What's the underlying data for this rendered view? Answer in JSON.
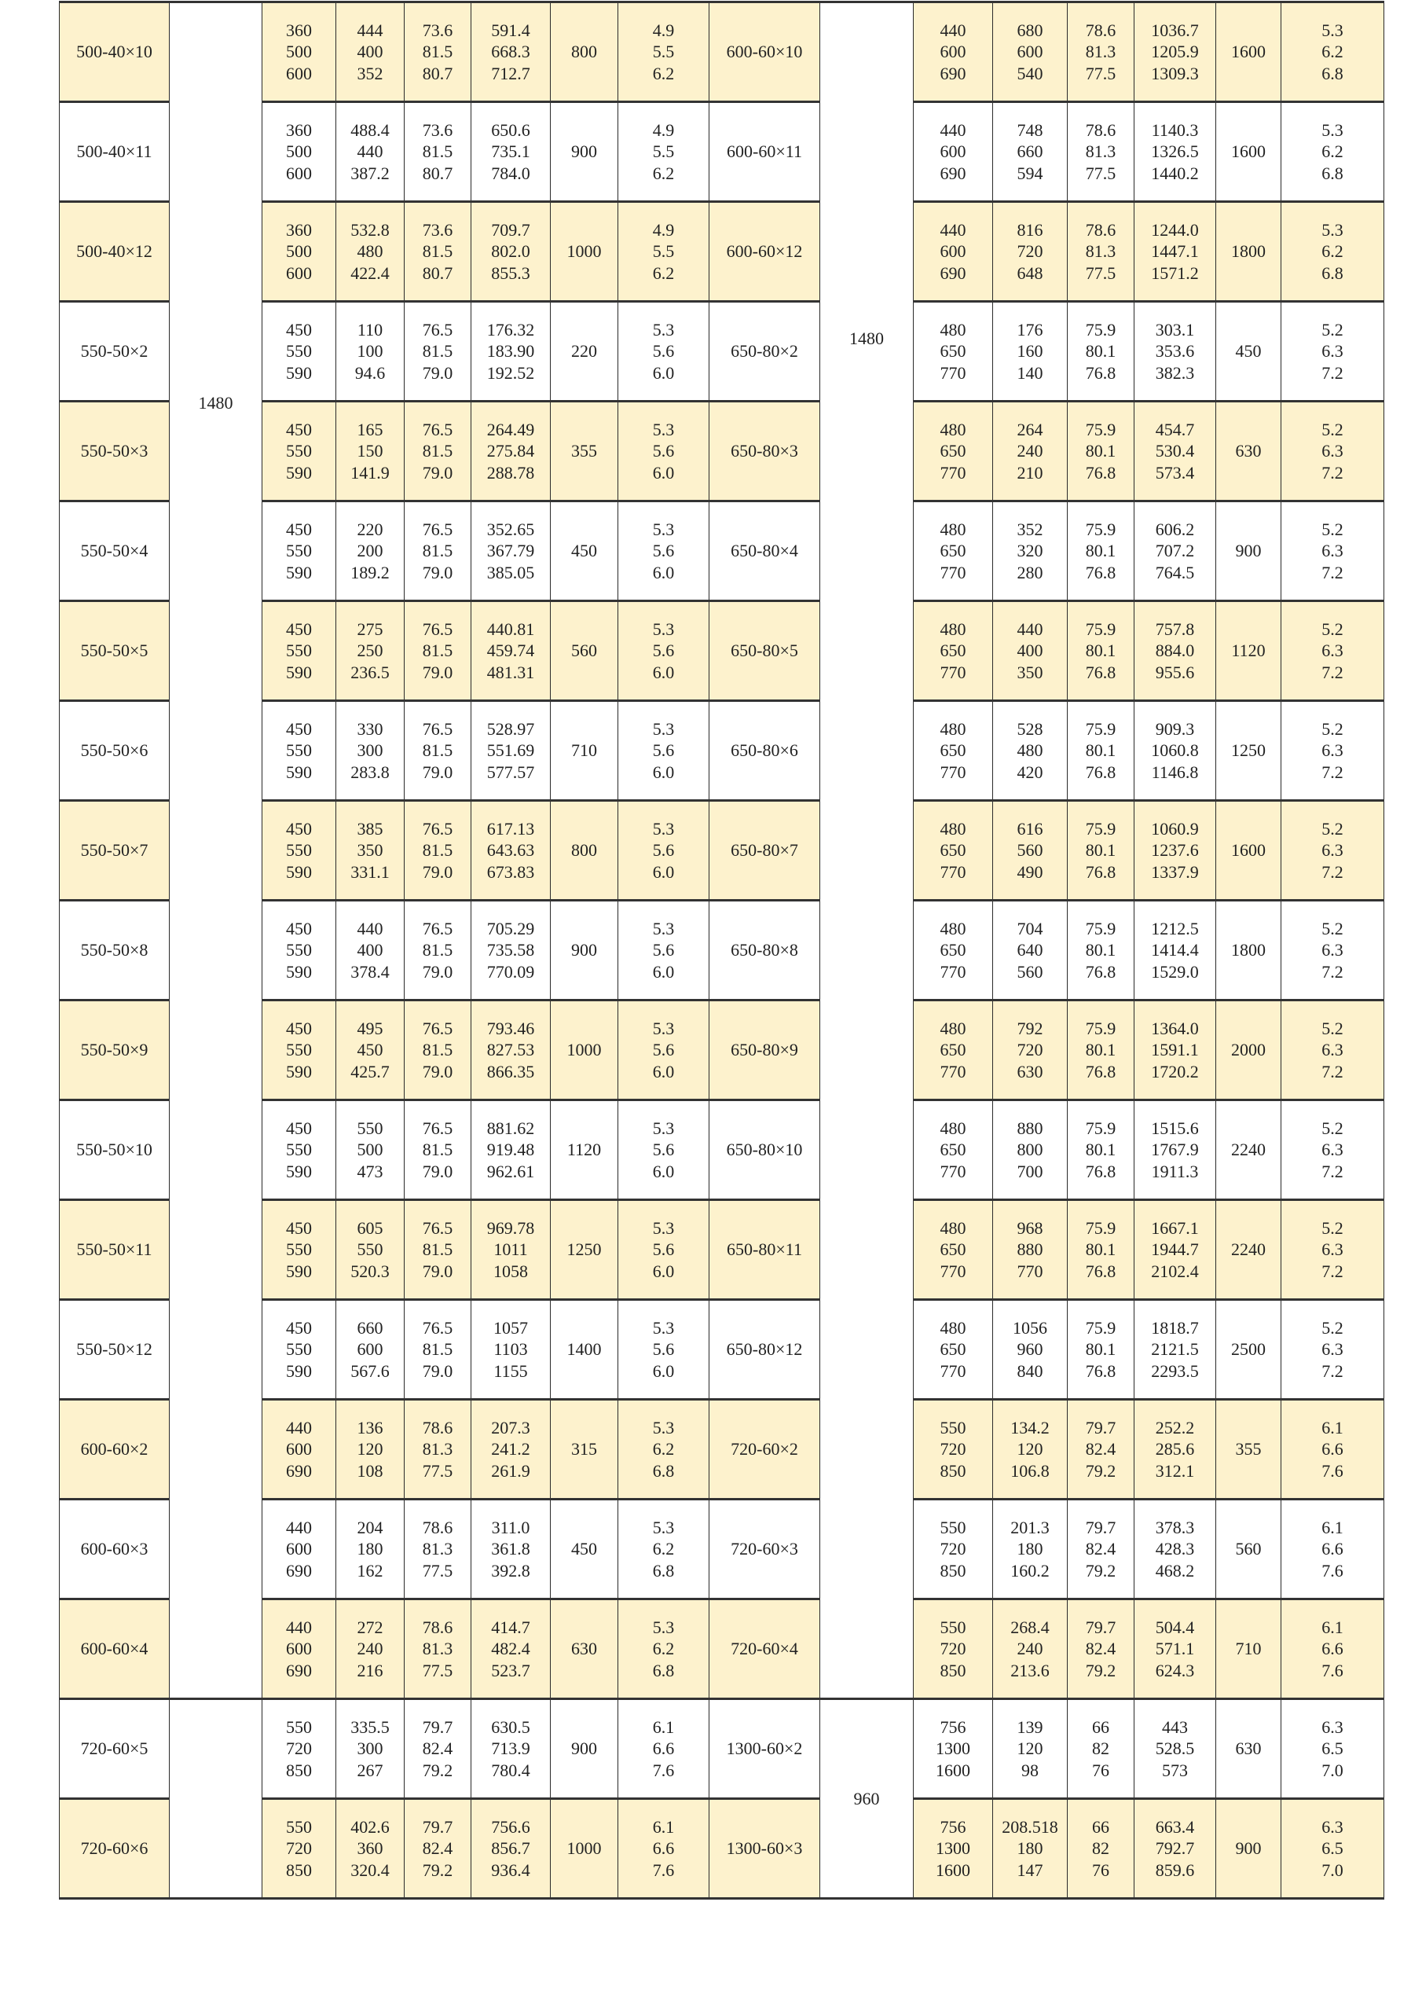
{
  "colors": {
    "alt_row": "#fdf2cd",
    "row": "#ffffff",
    "border": "#2a2a2a"
  },
  "speed_groups": {
    "left": [
      {
        "value": "1480",
        "rows": 17
      },
      {
        "value": "",
        "rows": 2
      }
    ],
    "right": [
      {
        "value": "1480",
        "rows": 17
      },
      {
        "value": "960",
        "rows": 2
      }
    ]
  },
  "rows": [
    {
      "l": {
        "model": "500-40×10",
        "flow": [
          "360",
          "500",
          "600"
        ],
        "head": [
          "444",
          "400",
          "352"
        ],
        "eff": [
          "73.6",
          "81.5",
          "80.7"
        ],
        "shaft": [
          "591.4",
          "668.3",
          "712.7"
        ],
        "motor": "800",
        "npsh": [
          "4.9",
          "5.5",
          "6.2"
        ]
      },
      "r": {
        "model": "600-60×10",
        "flow": [
          "440",
          "600",
          "690"
        ],
        "head": [
          "680",
          "600",
          "540"
        ],
        "eff": [
          "78.6",
          "81.3",
          "77.5"
        ],
        "shaft": [
          "1036.7",
          "1205.9",
          "1309.3"
        ],
        "motor": "1600",
        "npsh": [
          "5.3",
          "6.2",
          "6.8"
        ]
      }
    },
    {
      "l": {
        "model": "500-40×11",
        "flow": [
          "360",
          "500",
          "600"
        ],
        "head": [
          "488.4",
          "440",
          "387.2"
        ],
        "eff": [
          "73.6",
          "81.5",
          "80.7"
        ],
        "shaft": [
          "650.6",
          "735.1",
          "784.0"
        ],
        "motor": "900",
        "npsh": [
          "4.9",
          "5.5",
          "6.2"
        ]
      },
      "r": {
        "model": "600-60×11",
        "flow": [
          "440",
          "600",
          "690"
        ],
        "head": [
          "748",
          "660",
          "594"
        ],
        "eff": [
          "78.6",
          "81.3",
          "77.5"
        ],
        "shaft": [
          "1140.3",
          "1326.5",
          "1440.2"
        ],
        "motor": "1600",
        "npsh": [
          "5.3",
          "6.2",
          "6.8"
        ]
      }
    },
    {
      "l": {
        "model": "500-40×12",
        "flow": [
          "360",
          "500",
          "600"
        ],
        "head": [
          "532.8",
          "480",
          "422.4"
        ],
        "eff": [
          "73.6",
          "81.5",
          "80.7"
        ],
        "shaft": [
          "709.7",
          "802.0",
          "855.3"
        ],
        "motor": "1000",
        "npsh": [
          "4.9",
          "5.5",
          "6.2"
        ]
      },
      "r": {
        "model": "600-60×12",
        "flow": [
          "440",
          "600",
          "690"
        ],
        "head": [
          "816",
          "720",
          "648"
        ],
        "eff": [
          "78.6",
          "81.3",
          "77.5"
        ],
        "shaft": [
          "1244.0",
          "1447.1",
          "1571.2"
        ],
        "motor": "1800",
        "npsh": [
          "5.3",
          "6.2",
          "6.8"
        ]
      }
    },
    {
      "l": {
        "model": "550-50×2",
        "flow": [
          "450",
          "550",
          "590"
        ],
        "head": [
          "110",
          "100",
          "94.6"
        ],
        "eff": [
          "76.5",
          "81.5",
          "79.0"
        ],
        "shaft": [
          "176.32",
          "183.90",
          "192.52"
        ],
        "motor": "220",
        "npsh": [
          "5.3",
          "5.6",
          "6.0"
        ]
      },
      "r": {
        "model": "650-80×2",
        "flow": [
          "480",
          "650",
          "770"
        ],
        "head": [
          "176",
          "160",
          "140"
        ],
        "eff": [
          "75.9",
          "80.1",
          "76.8"
        ],
        "shaft": [
          "303.1",
          "353.6",
          "382.3"
        ],
        "motor": "450",
        "npsh": [
          "5.2",
          "6.3",
          "7.2"
        ]
      }
    },
    {
      "l": {
        "model": "550-50×3",
        "flow": [
          "450",
          "550",
          "590"
        ],
        "head": [
          "165",
          "150",
          "141.9"
        ],
        "eff": [
          "76.5",
          "81.5",
          "79.0"
        ],
        "shaft": [
          "264.49",
          "275.84",
          "288.78"
        ],
        "motor": "355",
        "npsh": [
          "5.3",
          "5.6",
          "6.0"
        ]
      },
      "r": {
        "model": "650-80×3",
        "flow": [
          "480",
          "650",
          "770"
        ],
        "head": [
          "264",
          "240",
          "210"
        ],
        "eff": [
          "75.9",
          "80.1",
          "76.8"
        ],
        "shaft": [
          "454.7",
          "530.4",
          "573.4"
        ],
        "motor": "630",
        "npsh": [
          "5.2",
          "6.3",
          "7.2"
        ]
      }
    },
    {
      "l": {
        "model": "550-50×4",
        "flow": [
          "450",
          "550",
          "590"
        ],
        "head": [
          "220",
          "200",
          "189.2"
        ],
        "eff": [
          "76.5",
          "81.5",
          "79.0"
        ],
        "shaft": [
          "352.65",
          "367.79",
          "385.05"
        ],
        "motor": "450",
        "npsh": [
          "5.3",
          "5.6",
          "6.0"
        ]
      },
      "r": {
        "model": "650-80×4",
        "flow": [
          "480",
          "650",
          "770"
        ],
        "head": [
          "352",
          "320",
          "280"
        ],
        "eff": [
          "75.9",
          "80.1",
          "76.8"
        ],
        "shaft": [
          "606.2",
          "707.2",
          "764.5"
        ],
        "motor": "900",
        "npsh": [
          "5.2",
          "6.3",
          "7.2"
        ]
      }
    },
    {
      "l": {
        "model": "550-50×5",
        "flow": [
          "450",
          "550",
          "590"
        ],
        "head": [
          "275",
          "250",
          "236.5"
        ],
        "eff": [
          "76.5",
          "81.5",
          "79.0"
        ],
        "shaft": [
          "440.81",
          "459.74",
          "481.31"
        ],
        "motor": "560",
        "npsh": [
          "5.3",
          "5.6",
          "6.0"
        ]
      },
      "r": {
        "model": "650-80×5",
        "flow": [
          "480",
          "650",
          "770"
        ],
        "head": [
          "440",
          "400",
          "350"
        ],
        "eff": [
          "75.9",
          "80.1",
          "76.8"
        ],
        "shaft": [
          "757.8",
          "884.0",
          "955.6"
        ],
        "motor": "1120",
        "npsh": [
          "5.2",
          "6.3",
          "7.2"
        ]
      }
    },
    {
      "l": {
        "model": "550-50×6",
        "flow": [
          "450",
          "550",
          "590"
        ],
        "head": [
          "330",
          "300",
          "283.8"
        ],
        "eff": [
          "76.5",
          "81.5",
          "79.0"
        ],
        "shaft": [
          "528.97",
          "551.69",
          "577.57"
        ],
        "motor": "710",
        "npsh": [
          "5.3",
          "5.6",
          "6.0"
        ]
      },
      "r": {
        "model": "650-80×6",
        "flow": [
          "480",
          "650",
          "770"
        ],
        "head": [
          "528",
          "480",
          "420"
        ],
        "eff": [
          "75.9",
          "80.1",
          "76.8"
        ],
        "shaft": [
          "909.3",
          "1060.8",
          "1146.8"
        ],
        "motor": "1250",
        "npsh": [
          "5.2",
          "6.3",
          "7.2"
        ]
      }
    },
    {
      "l": {
        "model": "550-50×7",
        "flow": [
          "450",
          "550",
          "590"
        ],
        "head": [
          "385",
          "350",
          "331.1"
        ],
        "eff": [
          "76.5",
          "81.5",
          "79.0"
        ],
        "shaft": [
          "617.13",
          "643.63",
          "673.83"
        ],
        "motor": "800",
        "npsh": [
          "5.3",
          "5.6",
          "6.0"
        ]
      },
      "r": {
        "model": "650-80×7",
        "flow": [
          "480",
          "650",
          "770"
        ],
        "head": [
          "616",
          "560",
          "490"
        ],
        "eff": [
          "75.9",
          "80.1",
          "76.8"
        ],
        "shaft": [
          "1060.9",
          "1237.6",
          "1337.9"
        ],
        "motor": "1600",
        "npsh": [
          "5.2",
          "6.3",
          "7.2"
        ]
      }
    },
    {
      "l": {
        "model": "550-50×8",
        "flow": [
          "450",
          "550",
          "590"
        ],
        "head": [
          "440",
          "400",
          "378.4"
        ],
        "eff": [
          "76.5",
          "81.5",
          "79.0"
        ],
        "shaft": [
          "705.29",
          "735.58",
          "770.09"
        ],
        "motor": "900",
        "npsh": [
          "5.3",
          "5.6",
          "6.0"
        ]
      },
      "r": {
        "model": "650-80×8",
        "flow": [
          "480",
          "650",
          "770"
        ],
        "head": [
          "704",
          "640",
          "560"
        ],
        "eff": [
          "75.9",
          "80.1",
          "76.8"
        ],
        "shaft": [
          "1212.5",
          "1414.4",
          "1529.0"
        ],
        "motor": "1800",
        "npsh": [
          "5.2",
          "6.3",
          "7.2"
        ]
      }
    },
    {
      "l": {
        "model": "550-50×9",
        "flow": [
          "450",
          "550",
          "590"
        ],
        "head": [
          "495",
          "450",
          "425.7"
        ],
        "eff": [
          "76.5",
          "81.5",
          "79.0"
        ],
        "shaft": [
          "793.46",
          "827.53",
          "866.35"
        ],
        "motor": "1000",
        "npsh": [
          "5.3",
          "5.6",
          "6.0"
        ]
      },
      "r": {
        "model": "650-80×9",
        "flow": [
          "480",
          "650",
          "770"
        ],
        "head": [
          "792",
          "720",
          "630"
        ],
        "eff": [
          "75.9",
          "80.1",
          "76.8"
        ],
        "shaft": [
          "1364.0",
          "1591.1",
          "1720.2"
        ],
        "motor": "2000",
        "npsh": [
          "5.2",
          "6.3",
          "7.2"
        ]
      }
    },
    {
      "l": {
        "model": "550-50×10",
        "flow": [
          "450",
          "550",
          "590"
        ],
        "head": [
          "550",
          "500",
          "473"
        ],
        "eff": [
          "76.5",
          "81.5",
          "79.0"
        ],
        "shaft": [
          "881.62",
          "919.48",
          "962.61"
        ],
        "motor": "1120",
        "npsh": [
          "5.3",
          "5.6",
          "6.0"
        ]
      },
      "r": {
        "model": "650-80×10",
        "flow": [
          "480",
          "650",
          "770"
        ],
        "head": [
          "880",
          "800",
          "700"
        ],
        "eff": [
          "75.9",
          "80.1",
          "76.8"
        ],
        "shaft": [
          "1515.6",
          "1767.9",
          "1911.3"
        ],
        "motor": "2240",
        "npsh": [
          "5.2",
          "6.3",
          "7.2"
        ]
      }
    },
    {
      "l": {
        "model": "550-50×11",
        "flow": [
          "450",
          "550",
          "590"
        ],
        "head": [
          "605",
          "550",
          "520.3"
        ],
        "eff": [
          "76.5",
          "81.5",
          "79.0"
        ],
        "shaft": [
          "969.78",
          "1011",
          "1058"
        ],
        "motor": "1250",
        "npsh": [
          "5.3",
          "5.6",
          "6.0"
        ]
      },
      "r": {
        "model": "650-80×11",
        "flow": [
          "480",
          "650",
          "770"
        ],
        "head": [
          "968",
          "880",
          "770"
        ],
        "eff": [
          "75.9",
          "80.1",
          "76.8"
        ],
        "shaft": [
          "1667.1",
          "1944.7",
          "2102.4"
        ],
        "motor": "2240",
        "npsh": [
          "5.2",
          "6.3",
          "7.2"
        ]
      }
    },
    {
      "l": {
        "model": "550-50×12",
        "flow": [
          "450",
          "550",
          "590"
        ],
        "head": [
          "660",
          "600",
          "567.6"
        ],
        "eff": [
          "76.5",
          "81.5",
          "79.0"
        ],
        "shaft": [
          "1057",
          "1103",
          "1155"
        ],
        "motor": "1400",
        "npsh": [
          "5.3",
          "5.6",
          "6.0"
        ]
      },
      "r": {
        "model": "650-80×12",
        "flow": [
          "480",
          "650",
          "770"
        ],
        "head": [
          "1056",
          "960",
          "840"
        ],
        "eff": [
          "75.9",
          "80.1",
          "76.8"
        ],
        "shaft": [
          "1818.7",
          "2121.5",
          "2293.5"
        ],
        "motor": "2500",
        "npsh": [
          "5.2",
          "6.3",
          "7.2"
        ]
      }
    },
    {
      "l": {
        "model": "600-60×2",
        "flow": [
          "440",
          "600",
          "690"
        ],
        "head": [
          "136",
          "120",
          "108"
        ],
        "eff": [
          "78.6",
          "81.3",
          "77.5"
        ],
        "shaft": [
          "207.3",
          "241.2",
          "261.9"
        ],
        "motor": "315",
        "npsh": [
          "5.3",
          "6.2",
          "6.8"
        ]
      },
      "r": {
        "model": "720-60×2",
        "flow": [
          "550",
          "720",
          "850"
        ],
        "head": [
          "134.2",
          "120",
          "106.8"
        ],
        "eff": [
          "79.7",
          "82.4",
          "79.2"
        ],
        "shaft": [
          "252.2",
          "285.6",
          "312.1"
        ],
        "motor": "355",
        "npsh": [
          "6.1",
          "6.6",
          "7.6"
        ]
      }
    },
    {
      "l": {
        "model": "600-60×3",
        "flow": [
          "440",
          "600",
          "690"
        ],
        "head": [
          "204",
          "180",
          "162"
        ],
        "eff": [
          "78.6",
          "81.3",
          "77.5"
        ],
        "shaft": [
          "311.0",
          "361.8",
          "392.8"
        ],
        "motor": "450",
        "npsh": [
          "5.3",
          "6.2",
          "6.8"
        ]
      },
      "r": {
        "model": "720-60×3",
        "flow": [
          "550",
          "720",
          "850"
        ],
        "head": [
          "201.3",
          "180",
          "160.2"
        ],
        "eff": [
          "79.7",
          "82.4",
          "79.2"
        ],
        "shaft": [
          "378.3",
          "428.3",
          "468.2"
        ],
        "motor": "560",
        "npsh": [
          "6.1",
          "6.6",
          "7.6"
        ]
      }
    },
    {
      "l": {
        "model": "600-60×4",
        "flow": [
          "440",
          "600",
          "690"
        ],
        "head": [
          "272",
          "240",
          "216"
        ],
        "eff": [
          "78.6",
          "81.3",
          "77.5"
        ],
        "shaft": [
          "414.7",
          "482.4",
          "523.7"
        ],
        "motor": "630",
        "npsh": [
          "5.3",
          "6.2",
          "6.8"
        ]
      },
      "r": {
        "model": "720-60×4",
        "flow": [
          "550",
          "720",
          "850"
        ],
        "head": [
          "268.4",
          "240",
          "213.6"
        ],
        "eff": [
          "79.7",
          "82.4",
          "79.2"
        ],
        "shaft": [
          "504.4",
          "571.1",
          "624.3"
        ],
        "motor": "710",
        "npsh": [
          "6.1",
          "6.6",
          "7.6"
        ]
      }
    },
    {
      "l": {
        "model": "720-60×5",
        "flow": [
          "550",
          "720",
          "850"
        ],
        "head": [
          "335.5",
          "300",
          "267"
        ],
        "eff": [
          "79.7",
          "82.4",
          "79.2"
        ],
        "shaft": [
          "630.5",
          "713.9",
          "780.4"
        ],
        "motor": "900",
        "npsh": [
          "6.1",
          "6.6",
          "7.6"
        ]
      },
      "r": {
        "model": "1300-60×2",
        "flow": [
          "756",
          "1300",
          "1600"
        ],
        "head": [
          "139",
          "120",
          "98"
        ],
        "eff": [
          "66",
          "82",
          "76"
        ],
        "shaft": [
          "443",
          "528.5",
          "573"
        ],
        "motor": "630",
        "npsh": [
          "6.3",
          "6.5",
          "7.0"
        ]
      }
    },
    {
      "l": {
        "model": "720-60×6",
        "flow": [
          "550",
          "720",
          "850"
        ],
        "head": [
          "402.6",
          "360",
          "320.4"
        ],
        "eff": [
          "79.7",
          "82.4",
          "79.2"
        ],
        "shaft": [
          "756.6",
          "856.7",
          "936.4"
        ],
        "motor": "1000",
        "npsh": [
          "6.1",
          "6.6",
          "7.6"
        ]
      },
      "r": {
        "model": "1300-60×3",
        "flow": [
          "756",
          "1300",
          "1600"
        ],
        "head": [
          "208.518",
          "180",
          "147"
        ],
        "eff": [
          "66",
          "82",
          "76"
        ],
        "shaft": [
          "663.4",
          "792.7",
          "859.6"
        ],
        "motor": "900",
        "npsh": [
          "6.3",
          "6.5",
          "7.0"
        ]
      }
    }
  ]
}
